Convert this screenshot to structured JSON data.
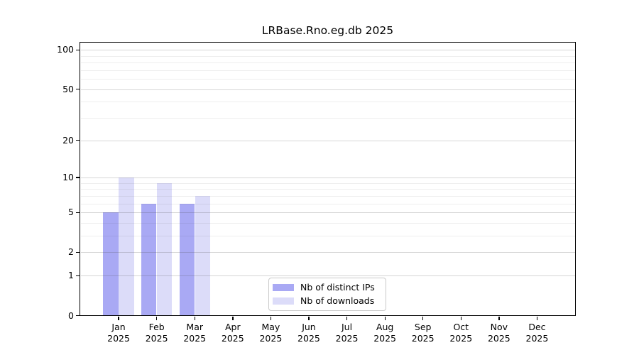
{
  "chart_data": {
    "type": "bar",
    "title": "LRBase.Rno.eg.db 2025",
    "categories": [
      "Jan",
      "Feb",
      "Mar",
      "Apr",
      "May",
      "Jun",
      "Jul",
      "Aug",
      "Sep",
      "Oct",
      "Nov",
      "Dec"
    ],
    "category_year": "2025",
    "series": [
      {
        "name": "Nb of distinct IPs",
        "color": "#a9a9f4",
        "values": [
          5,
          6,
          6,
          0,
          0,
          0,
          0,
          0,
          0,
          0,
          0,
          0
        ]
      },
      {
        "name": "Nb of downloads",
        "color": "#dcdcf9",
        "values": [
          10,
          9,
          7,
          0,
          0,
          0,
          0,
          0,
          0,
          0,
          0,
          0
        ]
      }
    ],
    "xlabel": "",
    "ylabel": "",
    "yscale": "log1p",
    "ylim": [
      0,
      113
    ],
    "yticks": [
      0,
      1,
      2,
      5,
      10,
      20,
      50,
      100
    ],
    "minor_yticks": [
      3,
      4,
      6,
      7,
      8,
      9,
      30,
      40,
      60,
      70,
      80,
      90
    ],
    "grid": "horizontal",
    "legend_position": "bottom-center-inside"
  },
  "colors": {
    "background": "#ffffff",
    "spine": "#000000",
    "major_grid": "rgba(70,70,70,0.22)",
    "minor_grid": "rgba(70,70,70,0.09)",
    "text": "#000000",
    "legend_border": "#c9c9c9"
  }
}
